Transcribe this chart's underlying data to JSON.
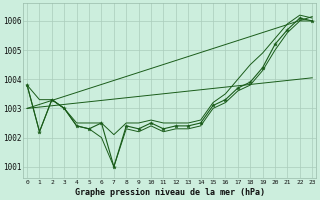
{
  "xlabel": "Graphe pression niveau de la mer (hPa)",
  "background_color": "#cceedd",
  "grid_color": "#aaccbb",
  "line_color": "#1a5c1a",
  "x_labels": [
    "0",
    "1",
    "2",
    "3",
    "4",
    "5",
    "6",
    "7",
    "8",
    "9",
    "10",
    "11",
    "12",
    "13",
    "14",
    "15",
    "16",
    "17",
    "18",
    "19",
    "20",
    "21",
    "22",
    "23"
  ],
  "ylim": [
    1000.6,
    1006.6
  ],
  "yticks": [
    1001,
    1002,
    1003,
    1004,
    1005,
    1006
  ],
  "pressure_main": [
    1003.8,
    1002.2,
    1003.3,
    1003.0,
    1002.4,
    1002.3,
    1002.5,
    1001.0,
    1002.4,
    1002.3,
    1002.5,
    1002.3,
    1002.4,
    1002.4,
    1002.5,
    1003.1,
    1003.3,
    1003.7,
    1003.9,
    1004.4,
    1005.2,
    1005.7,
    1006.1,
    1006.0
  ],
  "zigzag_high": [
    1003.8,
    1003.3,
    1003.3,
    1003.0,
    1002.5,
    1002.5,
    1002.5,
    1002.1,
    1002.5,
    1002.5,
    1002.6,
    1002.5,
    1002.5,
    1002.5,
    1002.6,
    1003.2,
    1003.5,
    1004.0,
    1004.5,
    1004.9,
    1005.4,
    1005.9,
    1006.2,
    1006.1
  ],
  "zigzag_low": [
    1003.8,
    1002.2,
    1003.3,
    1003.0,
    1002.4,
    1002.3,
    1002.0,
    1001.0,
    1002.3,
    1002.2,
    1002.4,
    1002.2,
    1002.3,
    1002.3,
    1002.4,
    1003.0,
    1003.2,
    1003.6,
    1003.8,
    1004.3,
    1005.0,
    1005.6,
    1006.0,
    1006.0
  ],
  "trend1": [
    1003.0,
    1004.05
  ],
  "trend2": [
    1003.0,
    1006.15
  ]
}
